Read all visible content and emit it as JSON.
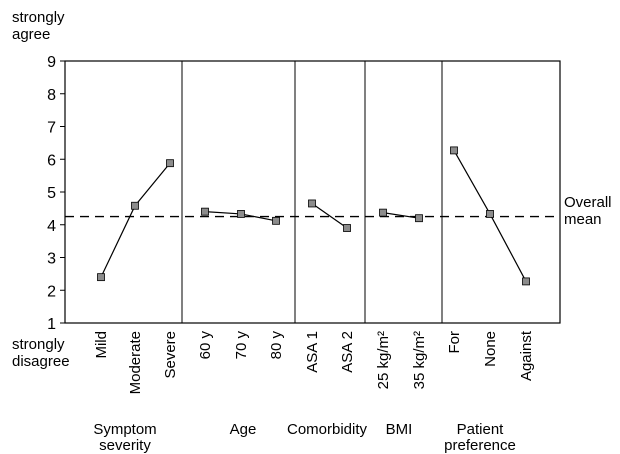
{
  "chart_data": {
    "type": "line",
    "title": "",
    "ylim": [
      1,
      9
    ],
    "y_ticks": [
      "1",
      "2",
      "3",
      "4",
      "5",
      "6",
      "7",
      "8",
      "9"
    ],
    "y_top_label": [
      "strongly",
      "agree"
    ],
    "y_bottom_label": [
      "strongly",
      "disagree"
    ],
    "reference_line": {
      "label": [
        "Overall",
        "mean"
      ],
      "value": 4.25
    },
    "grid": false,
    "groups": [
      {
        "label": [
          "Symptom",
          "severity"
        ],
        "categories": [
          "Mild",
          "Moderate",
          "Severe"
        ],
        "values": [
          2.4,
          4.58,
          5.88
        ]
      },
      {
        "label": [
          "Age"
        ],
        "categories": [
          "60 y",
          "70 y",
          "80 y"
        ],
        "values": [
          4.4,
          4.33,
          4.12
        ]
      },
      {
        "label": [
          "Comorbidity"
        ],
        "categories": [
          "ASA 1",
          "ASA 2"
        ],
        "values": [
          4.65,
          3.9
        ]
      },
      {
        "label": [
          "BMI"
        ],
        "categories": [
          "25 kg/m²",
          "35 kg/m²"
        ],
        "values": [
          4.37,
          4.2
        ]
      },
      {
        "label": [
          "Patient",
          "preference"
        ],
        "categories": [
          "For",
          "None",
          "Against"
        ],
        "values": [
          6.27,
          4.33,
          2.27
        ]
      }
    ]
  }
}
